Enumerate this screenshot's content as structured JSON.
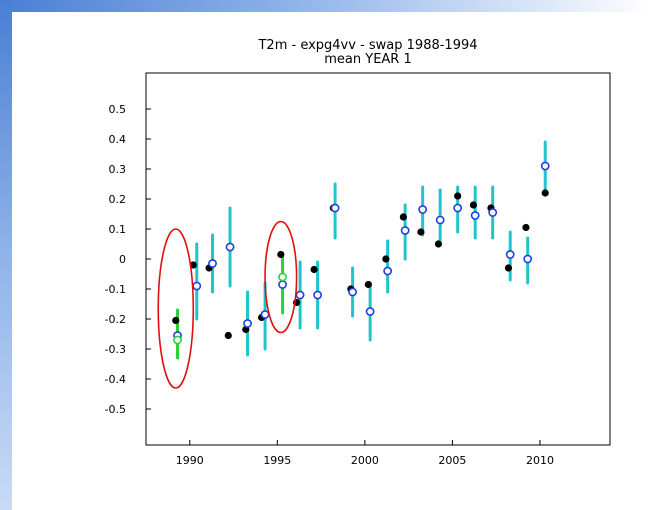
{
  "chart_data": {
    "type": "scatter",
    "title": "T2m  -  expg4vv  -  swap 1988-1994",
    "subtitle": "mean YEAR 1",
    "xlabel": "",
    "ylabel": "",
    "xlim": [
      1987.5,
      2014
    ],
    "ylim": [
      -0.62,
      0.62
    ],
    "xticks": [
      1990,
      1995,
      2000,
      2005,
      2010
    ],
    "yticks": [
      0.5,
      0.4,
      0.3,
      0.2,
      0.1,
      0,
      -0.1,
      -0.2,
      -0.3,
      -0.4,
      -0.5
    ],
    "ytick_labels": [
      "0.5",
      "0.4",
      "0.3",
      "0.2",
      "0.1",
      "0",
      "-0.1",
      "-0.2",
      "-0.3",
      "-0.4",
      "-0.5"
    ],
    "grid": false,
    "colors": {
      "observed": "#000000",
      "ensemble_mean": "#1f3fe0",
      "range": "#1fc4cc",
      "swap_range": "#27d23b",
      "highlight": "#e01010"
    },
    "observed": [
      {
        "x": 1989.2,
        "y": -0.205
      },
      {
        "x": 1990.2,
        "y": -0.02
      },
      {
        "x": 1991.1,
        "y": -0.03
      },
      {
        "x": 1992.2,
        "y": -0.255
      },
      {
        "x": 1993.2,
        "y": -0.235
      },
      {
        "x": 1994.1,
        "y": -0.195
      },
      {
        "x": 1995.2,
        "y": 0.015
      },
      {
        "x": 1996.1,
        "y": -0.145
      },
      {
        "x": 1997.1,
        "y": -0.035
      },
      {
        "x": 1998.2,
        "y": 0.17
      },
      {
        "x": 1999.2,
        "y": -0.1
      },
      {
        "x": 2000.2,
        "y": -0.085
      },
      {
        "x": 2001.2,
        "y": 0.0
      },
      {
        "x": 2002.2,
        "y": 0.14
      },
      {
        "x": 2003.2,
        "y": 0.09
      },
      {
        "x": 2004.2,
        "y": 0.05
      },
      {
        "x": 2005.3,
        "y": 0.21
      },
      {
        "x": 2006.2,
        "y": 0.18
      },
      {
        "x": 2007.2,
        "y": 0.17
      },
      {
        "x": 2008.2,
        "y": -0.03
      },
      {
        "x": 2009.2,
        "y": 0.105
      },
      {
        "x": 2010.3,
        "y": 0.22
      }
    ],
    "forecast": [
      {
        "x": 1989.3,
        "y": -0.255,
        "lo": -0.33,
        "hi": -0.17,
        "swap": true,
        "swap_y": -0.27
      },
      {
        "x": 1990.4,
        "y": -0.09,
        "lo": -0.2,
        "hi": 0.05,
        "swap": false
      },
      {
        "x": 1991.3,
        "y": -0.015,
        "lo": -0.11,
        "hi": 0.08,
        "swap": false
      },
      {
        "x": 1992.3,
        "y": 0.04,
        "lo": -0.09,
        "hi": 0.17,
        "swap": false
      },
      {
        "x": 1993.3,
        "y": -0.215,
        "lo": -0.32,
        "hi": -0.11,
        "swap": false
      },
      {
        "x": 1994.3,
        "y": -0.185,
        "lo": -0.3,
        "hi": -0.08,
        "swap": false
      },
      {
        "x": 1995.3,
        "y": -0.085,
        "lo": -0.18,
        "hi": 0.02,
        "swap": true,
        "swap_y": -0.06
      },
      {
        "x": 1996.3,
        "y": -0.12,
        "lo": -0.23,
        "hi": -0.01,
        "swap": false
      },
      {
        "x": 1997.3,
        "y": -0.12,
        "lo": -0.23,
        "hi": -0.01,
        "swap": false
      },
      {
        "x": 1998.3,
        "y": 0.17,
        "lo": 0.07,
        "hi": 0.25,
        "swap": false
      },
      {
        "x": 1999.3,
        "y": -0.11,
        "lo": -0.19,
        "hi": -0.03,
        "swap": false
      },
      {
        "x": 2000.3,
        "y": -0.175,
        "lo": -0.27,
        "hi": -0.08,
        "swap": false
      },
      {
        "x": 2001.3,
        "y": -0.04,
        "lo": -0.11,
        "hi": 0.06,
        "swap": false
      },
      {
        "x": 2002.3,
        "y": 0.095,
        "lo": 0.0,
        "hi": 0.18,
        "swap": false
      },
      {
        "x": 2003.3,
        "y": 0.165,
        "lo": 0.08,
        "hi": 0.24,
        "swap": false
      },
      {
        "x": 2004.3,
        "y": 0.13,
        "lo": 0.06,
        "hi": 0.23,
        "swap": false
      },
      {
        "x": 2005.3,
        "y": 0.17,
        "lo": 0.09,
        "hi": 0.24,
        "swap": false
      },
      {
        "x": 2006.3,
        "y": 0.145,
        "lo": 0.07,
        "hi": 0.24,
        "swap": false
      },
      {
        "x": 2007.3,
        "y": 0.155,
        "lo": 0.07,
        "hi": 0.24,
        "swap": false
      },
      {
        "x": 2008.3,
        "y": 0.015,
        "lo": -0.07,
        "hi": 0.09,
        "swap": false
      },
      {
        "x": 2009.3,
        "y": 0.0,
        "lo": -0.08,
        "hi": 0.07,
        "swap": false
      },
      {
        "x": 2010.3,
        "y": 0.31,
        "lo": 0.22,
        "hi": 0.39,
        "swap": false
      }
    ],
    "highlights": [
      {
        "x_center": 1989.2,
        "y_center": -0.165,
        "half_width_years": 1.0,
        "half_height": 0.265
      },
      {
        "x_center": 1995.2,
        "y_center": -0.06,
        "half_width_years": 0.9,
        "half_height": 0.185
      }
    ]
  }
}
